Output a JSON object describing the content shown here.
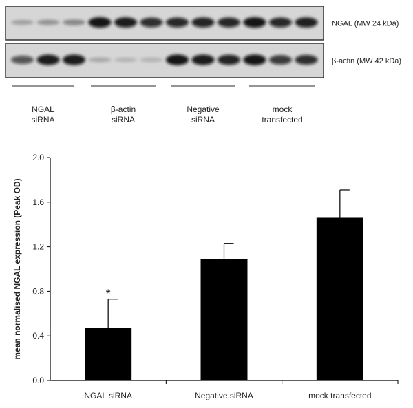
{
  "blot": {
    "bands": [
      {
        "label": "NGAL (MW 24 kDa)",
        "intensities": [
          0.15,
          0.22,
          0.28,
          0.95,
          0.92,
          0.82,
          0.85,
          0.88,
          0.86,
          0.95,
          0.85,
          0.9
        ]
      },
      {
        "label": "β-actin (MW 42 kDa)",
        "intensities": [
          0.6,
          0.92,
          0.92,
          0.1,
          0.05,
          0.06,
          0.95,
          0.92,
          0.88,
          0.95,
          0.75,
          0.82
        ]
      }
    ],
    "groups": [
      {
        "line1": "NGAL",
        "line2": "siRNA"
      },
      {
        "line1": "β-actin",
        "line2": "siRNA"
      },
      {
        "line1": "Negative",
        "line2": "siRNA"
      },
      {
        "line1": "mock",
        "line2": "transfected"
      }
    ],
    "colors": {
      "background": "#d6d6d6",
      "band": "#0c0c0c",
      "frame": "#333333"
    }
  },
  "chart_data": {
    "type": "bar",
    "categories": [
      "NGAL siRNA",
      "Negative siRNA",
      "mock transfected"
    ],
    "values": [
      0.47,
      1.09,
      1.46
    ],
    "error_upper": [
      0.26,
      0.14,
      0.25
    ],
    "annotations": [
      "*",
      "",
      ""
    ],
    "xlabel": "",
    "ylabel": "mean normalised NGAL expression (Peak OD)",
    "ylim": [
      0,
      2.0
    ],
    "yticks": [
      "0.0",
      "0.4",
      "0.8",
      "1.2",
      "1.6",
      "2.0"
    ],
    "grid": false,
    "bar_color": "#000000"
  }
}
